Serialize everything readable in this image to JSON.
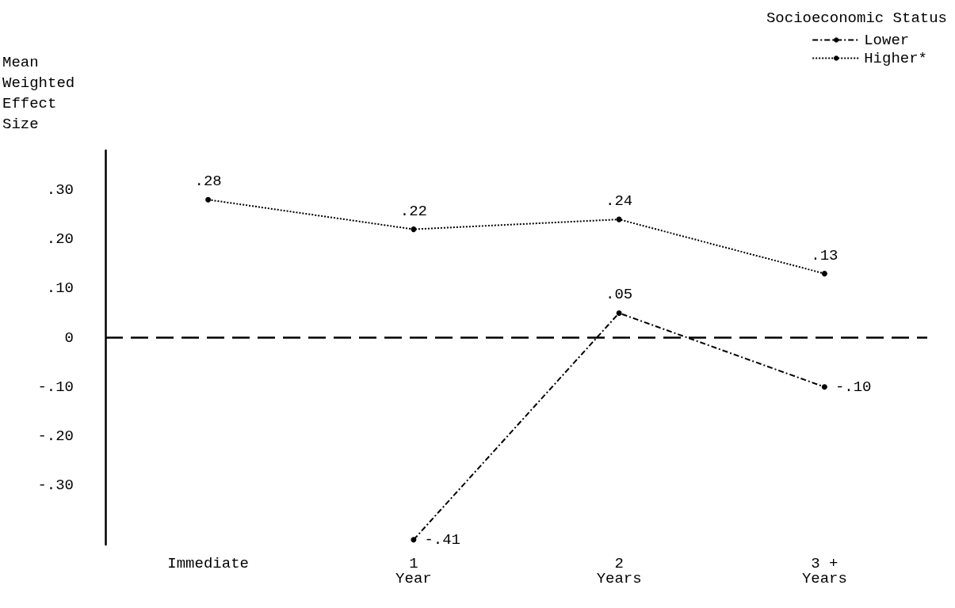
{
  "chart_data": {
    "type": "line",
    "ylabel": "Mean\nWeighted\nEffect\nSize",
    "legend_title": "Socioeconomic Status",
    "categories": [
      "Immediate",
      "1\nYear",
      "2\nYears",
      "3 +\nYears"
    ],
    "series": [
      {
        "name": "Lower",
        "color": "#000000",
        "line_style": "dashed",
        "values": [
          null,
          -0.41,
          0.05,
          -0.1
        ],
        "value_labels": [
          null,
          "-.41",
          ".05",
          "-.10"
        ]
      },
      {
        "name": "Higher*",
        "color": "#000000",
        "line_style": "dotted",
        "values": [
          0.28,
          0.22,
          0.24,
          0.13
        ],
        "value_labels": [
          ".28",
          ".22",
          ".24",
          ".13"
        ]
      }
    ],
    "ylim": [
      -0.42,
      0.38
    ],
    "yticks": [
      {
        "value": -0.3,
        "label": "-.30"
      },
      {
        "value": -0.2,
        "label": "-.20"
      },
      {
        "value": -0.1,
        "label": "-.10"
      },
      0,
      {
        "value": 0.1,
        "label": ".10"
      },
      {
        "value": 0.2,
        "label": ".20"
      },
      {
        "value": 0.3,
        "label": ".30"
      }
    ],
    "ref_lines": [
      {
        "axis": "y",
        "value": 0,
        "line_style": "dashed",
        "color": "#000000"
      }
    ],
    "marker": "circle",
    "grid": false,
    "legend": "top right"
  }
}
